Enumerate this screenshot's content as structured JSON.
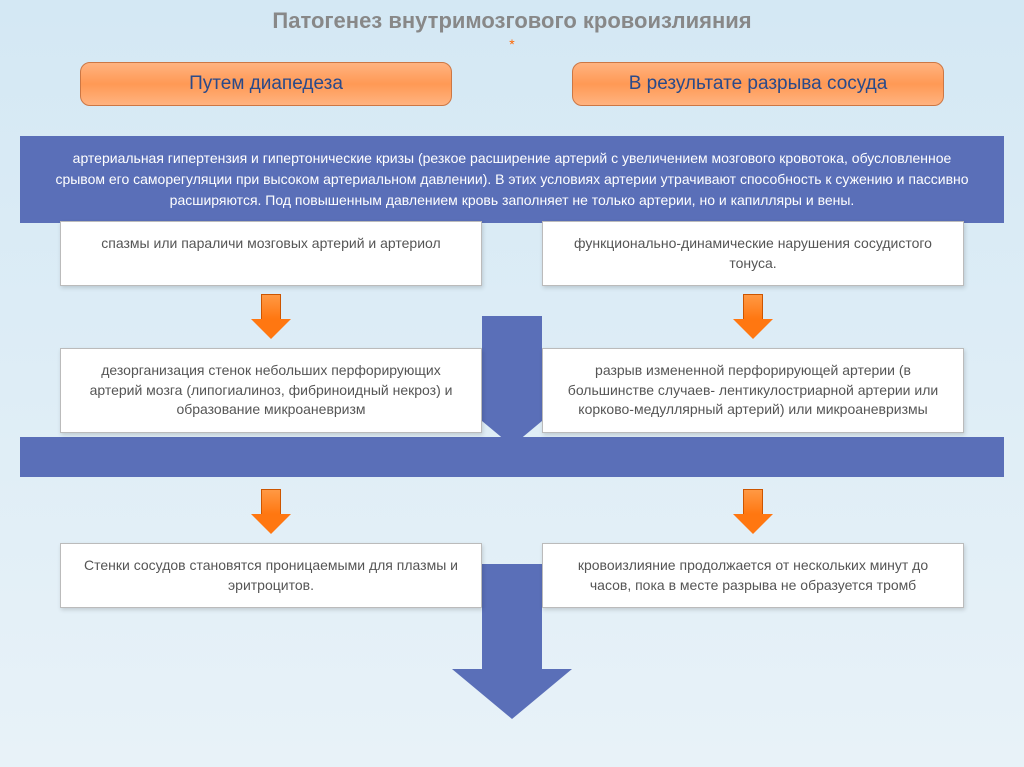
{
  "title": "Патогенез внутримозгового кровоизлияния",
  "asterisk": "*",
  "top": {
    "left": "Путем диапедеза",
    "right": "В результате разрыва сосуда"
  },
  "bar1": "артериальная гипертензия и гипертонические кризы (резкое расширение артерий с увеличением мозгового кровотока, обусловленное срывом его саморегуляции при высоком артериальном давлении). В этих условиях артерии утрачивают способность к сужению и пассивно расширяются. Под повышенным давлением кровь заполняет не только артерии, но и капилляры и вены.",
  "row1": {
    "left": "спазмы или параличи мозговых артерий и артериол",
    "right": "функционально-динамические нарушения сосудистого тонуса."
  },
  "row2": {
    "left": "дезорганизация стенок небольших перфорирующих артерий мозга (липогиалиноз, фибриноидный некроз) и образование микроаневризм",
    "right": "разрыв измененной перфорирующей артерии (в большинстве случаев- лентикулостриарной артерии или корково-медуллярный артерий) или микроаневризмы"
  },
  "row3": {
    "left": "Стенки сосудов становятся проницаемыми для плазмы и эритроцитов.",
    "right": "кровоизлияние продолжается от нескольких минут до часов, пока в месте разрыва не образуется тромб"
  },
  "colors": {
    "page_bg_top": "#d4e8f4",
    "page_bg_bottom": "#e8f2f8",
    "title_color": "#888888",
    "asterisk_color": "#ff6600",
    "top_box_grad_light": "#ffb380",
    "top_box_grad_dark": "#ff9955",
    "top_box_border": "#cc7744",
    "top_box_text": "#2a4a8a",
    "blue_bar": "#5a6fb8",
    "white_box_bg": "#ffffff",
    "white_box_border": "#bbbbbb",
    "white_box_text": "#555555",
    "orange_arrow_light": "#ff9944",
    "orange_arrow_dark": "#ff7711",
    "orange_arrow_border": "#cc5500"
  },
  "style": {
    "type": "flowchart",
    "title_fontsize": 22,
    "top_box_fontsize": 19,
    "body_fontsize": 14,
    "top_box_radius": 10,
    "orange_arrow_w": 40,
    "orange_arrow_h": 46
  }
}
